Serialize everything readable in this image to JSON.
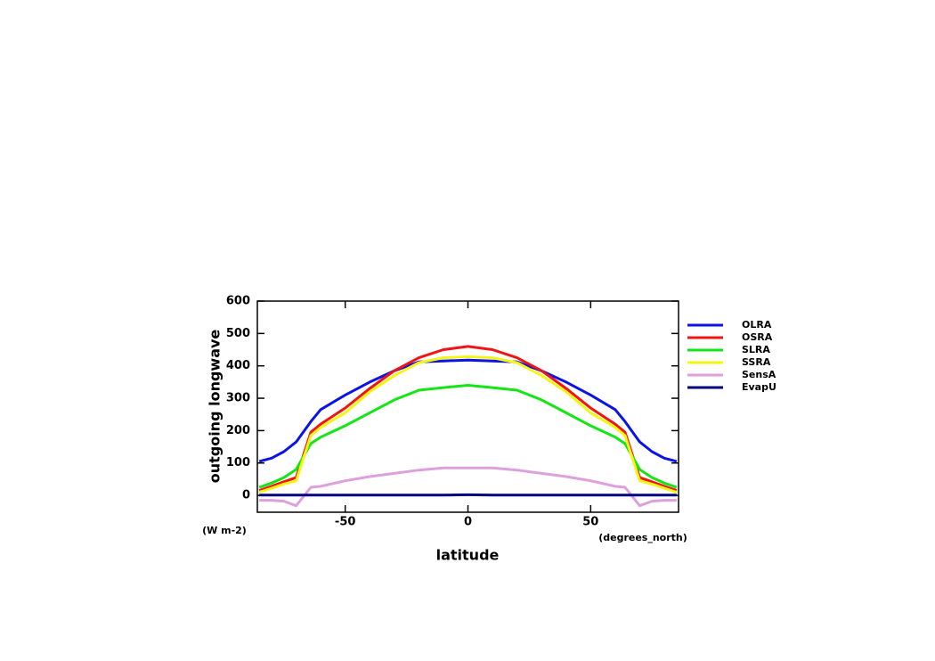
{
  "chart_data": {
    "type": "line",
    "y_label": "outgoing longwave",
    "y_units": "(W m-2)",
    "x_label": "latitude",
    "x_units": "(degrees_north)",
    "x": [
      -85,
      -80,
      -75,
      -70,
      -64,
      -60,
      -50,
      -40,
      -30,
      -20,
      -10,
      0,
      10,
      20,
      30,
      40,
      50,
      60,
      64,
      70,
      75,
      80,
      85
    ],
    "series": [
      {
        "name": "OLRA",
        "color": "#0a14e6",
        "values": [
          105,
          115,
          135,
          165,
          228,
          265,
          310,
          350,
          385,
          412,
          415,
          418,
          415,
          412,
          385,
          350,
          310,
          265,
          228,
          165,
          135,
          115,
          105
        ]
      },
      {
        "name": "OSRA",
        "color": "#f01414",
        "values": [
          15,
          28,
          42,
          55,
          195,
          220,
          270,
          330,
          385,
          425,
          450,
          460,
          450,
          425,
          385,
          330,
          270,
          220,
          195,
          55,
          42,
          28,
          15
        ]
      },
      {
        "name": "SLRA",
        "color": "#14e614",
        "values": [
          25,
          38,
          55,
          80,
          160,
          180,
          215,
          255,
          295,
          325,
          333,
          340,
          333,
          325,
          295,
          255,
          215,
          180,
          160,
          80,
          55,
          38,
          25
        ]
      },
      {
        "name": "SSRA",
        "color": "#f5f514",
        "values": [
          10,
          22,
          35,
          45,
          185,
          210,
          255,
          320,
          370,
          410,
          425,
          428,
          425,
          410,
          370,
          320,
          255,
          210,
          185,
          45,
          35,
          22,
          10
        ]
      },
      {
        "name": "SensA",
        "color": "#dda0dd",
        "values": [
          -15,
          -15,
          -18,
          -32,
          25,
          28,
          45,
          58,
          68,
          78,
          85,
          85,
          85,
          78,
          68,
          58,
          45,
          28,
          25,
          -32,
          -18,
          -15,
          -15
        ]
      },
      {
        "name": "EvapU",
        "color": "#000080",
        "values": [
          1,
          1,
          1,
          1,
          1,
          1,
          1,
          1,
          1,
          1,
          1,
          2,
          1,
          1,
          1,
          1,
          1,
          1,
          1,
          1,
          1,
          1,
          1
        ]
      }
    ],
    "xlim": [
      -85.8,
      85.8
    ],
    "ylim": [
      -52,
      600
    ],
    "xticks": [
      -50,
      0,
      50
    ],
    "yticks": [
      0,
      100,
      200,
      300,
      400,
      500,
      600
    ],
    "legend": "right"
  }
}
